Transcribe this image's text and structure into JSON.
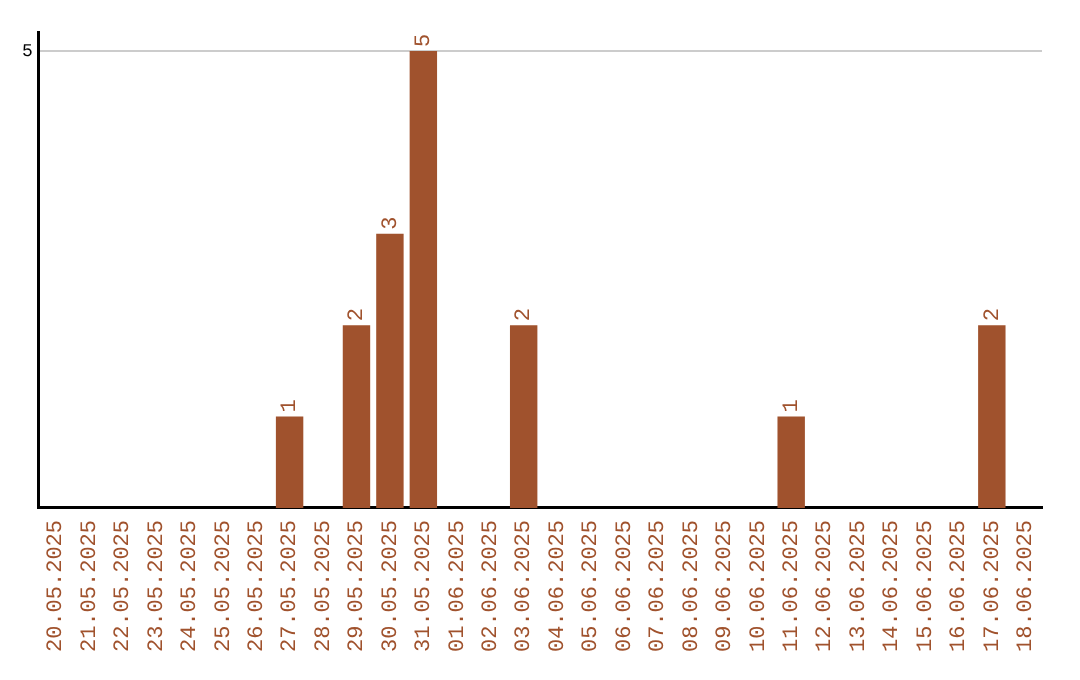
{
  "chart_data": {
    "type": "bar",
    "categories": [
      "20.05.2025",
      "21.05.2025",
      "22.05.2025",
      "23.05.2025",
      "24.05.2025",
      "25.05.2025",
      "26.05.2025",
      "27.05.2025",
      "28.05.2025",
      "29.05.2025",
      "30.05.2025",
      "31.05.2025",
      "01.06.2025",
      "02.06.2025",
      "03.06.2025",
      "04.06.2025",
      "05.06.2025",
      "06.06.2025",
      "07.06.2025",
      "08.06.2025",
      "09.06.2025",
      "10.06.2025",
      "11.06.2025",
      "12.06.2025",
      "13.06.2025",
      "14.06.2025",
      "15.06.2025",
      "16.06.2025",
      "17.06.2025",
      "18.06.2025"
    ],
    "values": [
      0,
      0,
      0,
      0,
      0,
      0,
      0,
      1,
      0,
      2,
      3,
      5,
      0,
      0,
      2,
      0,
      0,
      0,
      0,
      0,
      0,
      0,
      1,
      0,
      0,
      0,
      0,
      0,
      2,
      0
    ],
    "value_labels": [
      null,
      null,
      null,
      null,
      null,
      null,
      null,
      "1",
      null,
      "2",
      "3",
      "5",
      null,
      null,
      "2",
      null,
      null,
      null,
      null,
      null,
      null,
      null,
      "1",
      null,
      null,
      null,
      null,
      null,
      "2",
      null
    ],
    "color": "#a0522d",
    "ylim": [
      0,
      5.2
    ],
    "yticks": [
      5
    ],
    "grid": "y",
    "legend": false
  }
}
